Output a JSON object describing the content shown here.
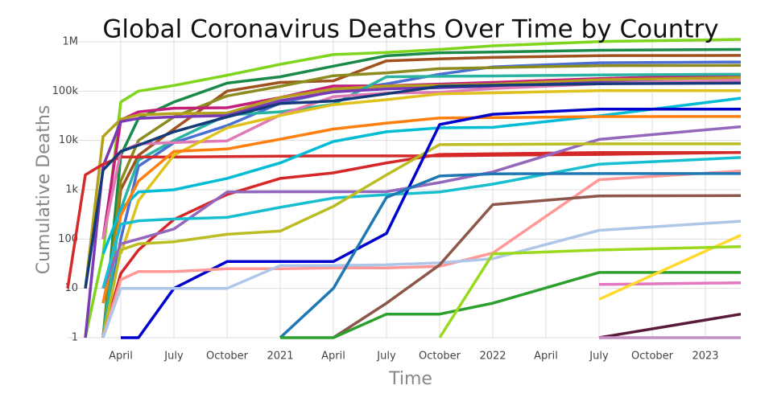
{
  "chart_data": {
    "type": "line",
    "title": "Global Coronavirus Deaths Over Time by Country",
    "x_label": "Time",
    "y_label": "Cumulative Deaths",
    "log_y": true,
    "grid": true,
    "x": [
      "2020-01",
      "2020-02",
      "2020-03",
      "2020-04",
      "2020-05",
      "2020-07",
      "2020-10",
      "2021-01",
      "2021-04",
      "2021-07",
      "2021-10",
      "2022-01",
      "2022-07",
      "2023-03"
    ],
    "xlim": [
      "2020-01",
      "2023-03"
    ],
    "xticks": [
      {
        "value": "2020-04",
        "label": "April"
      },
      {
        "value": "2020-07",
        "label": "July"
      },
      {
        "value": "2020-10",
        "label": "October"
      },
      {
        "value": "2021-01",
        "label": "2021"
      },
      {
        "value": "2021-04",
        "label": "April"
      },
      {
        "value": "2021-07",
        "label": "July"
      },
      {
        "value": "2021-10",
        "label": "October"
      },
      {
        "value": "2022-01",
        "label": "2022"
      },
      {
        "value": "2022-04",
        "label": "April"
      },
      {
        "value": "2022-07",
        "label": "July"
      },
      {
        "value": "2022-10",
        "label": "October"
      },
      {
        "value": "2023-01",
        "label": "2023"
      }
    ],
    "ylim": [
      1,
      1300000
    ],
    "yticks": [
      1,
      10,
      100,
      {
        "value": 1000,
        "label": "1k"
      },
      {
        "value": 10000,
        "label": "10k"
      },
      {
        "value": 100000,
        "label": "100k"
      },
      {
        "value": 1000000,
        "label": "1M"
      }
    ],
    "series": [
      {
        "color": "#7fd41c",
        "values": [
          null,
          1,
          50,
          60000,
          100000,
          130000,
          210000,
          350000,
          550000,
          610000,
          700000,
          830000,
          1010000,
          1120000
        ]
      },
      {
        "color": "#1a8a4a",
        "values": [
          null,
          null,
          1,
          5000,
          28000,
          60000,
          145000,
          195000,
          320000,
          520000,
          600000,
          620000,
          675000,
          700000
        ]
      },
      {
        "color": "#a0521e",
        "values": [
          null,
          null,
          1,
          1000,
          5000,
          17000,
          100000,
          150000,
          162000,
          410000,
          450000,
          482000,
          525000,
          530000
        ]
      },
      {
        "color": "#4a6fd4",
        "values": [
          null,
          null,
          1,
          100,
          3000,
          9000,
          20000,
          57000,
          100000,
          140000,
          220000,
          310000,
          375000,
          390000
        ]
      },
      {
        "color": "#8b8b1e",
        "values": [
          null,
          null,
          1,
          1500,
          10000,
          30000,
          80000,
          125000,
          205000,
          235000,
          285000,
          300000,
          328000,
          333000
        ]
      },
      {
        "color": "#c41e7a",
        "values": [
          null,
          null,
          100,
          26000,
          38000,
          45000,
          46000,
          74000,
          127000,
          128000,
          139000,
          150000,
          180000,
          210000
        ]
      },
      {
        "color": "#b5a01a",
        "values": [
          null,
          10,
          12000,
          27000,
          33000,
          35000,
          36000,
          74000,
          110000,
          127000,
          131000,
          137000,
          170000,
          188000
        ]
      },
      {
        "color": "#2ab3a0",
        "values": [
          null,
          null,
          1,
          400,
          4000,
          10000,
          33000,
          38000,
          54000,
          195000,
          200000,
          203000,
          213000,
          219000
        ]
      },
      {
        "color": "#7a3ab5",
        "values": [
          null,
          1,
          3000,
          24000,
          28000,
          30000,
          32000,
          64000,
          96000,
          111000,
          117000,
          126000,
          150000,
          160000
        ]
      },
      {
        "color": "#d42a2a",
        "values": [
          10,
          2000,
          3300,
          4600,
          4630,
          4630,
          4700,
          4800,
          4850,
          4850,
          4850,
          5000,
          5200,
          5700
        ]
      },
      {
        "color": "#e07ab5",
        "values": [
          null,
          null,
          100,
          6000,
          8500,
          9100,
          9800,
          33000,
          77000,
          91000,
          95000,
          113000,
          141000,
          167000
        ]
      },
      {
        "color": "#143a7a",
        "values": [
          null,
          10,
          2500,
          6000,
          8000,
          15000,
          30000,
          56000,
          63000,
          88000,
          125000,
          131000,
          141000,
          145000
        ]
      },
      {
        "color": "#e0c21e",
        "values": [
          null,
          null,
          null,
          50,
          600,
          5000,
          18000,
          32000,
          53000,
          67000,
          88000,
          92000,
          102000,
          102000
        ]
      },
      {
        "color": "#00bcd4",
        "values": [
          null,
          null,
          50,
          400,
          900,
          1000,
          1700,
          3500,
          9500,
          15000,
          18000,
          18400,
          31500,
          72000
        ]
      },
      {
        "color": "#ff7f0e",
        "values": [
          null,
          null,
          5,
          300,
          1500,
          6000,
          6700,
          10600,
          17000,
          22500,
          28500,
          29000,
          30400,
          30600
        ]
      },
      {
        "color": "#d62728",
        "values": [
          null,
          null,
          1,
          20,
          60,
          250,
          800,
          1700,
          2200,
          3500,
          5200,
          5350,
          5670,
          5690
        ]
      },
      {
        "color": "#9467bd",
        "values": [
          null,
          null,
          10,
          80,
          100,
          160,
          900,
          909,
          910,
          915,
          1400,
          2300,
          10500,
          19000
        ]
      },
      {
        "color": "#17becf",
        "values": [
          null,
          null,
          10,
          200,
          235,
          255,
          275,
          440,
          680,
          795,
          900,
          1300,
          3300,
          4500
        ]
      },
      {
        "color": "#bcbd22",
        "values": [
          null,
          null,
          1,
          60,
          80,
          88,
          125,
          145,
          460,
          2000,
          8200,
          8320,
          8530,
          8530
        ]
      },
      {
        "color": "#0000cc",
        "values": [
          null,
          null,
          null,
          1,
          1,
          10,
          35,
          35,
          35,
          130,
          21000,
          34000,
          43000,
          43000
        ]
      },
      {
        "color": "#ff9896",
        "values": [
          null,
          null,
          1,
          15,
          22,
          22,
          25,
          25,
          26,
          26,
          28,
          52,
          1600,
          2400
        ]
      },
      {
        "color": "#aec7e8",
        "values": [
          null,
          null,
          1,
          10,
          10,
          10,
          10,
          29,
          29,
          30,
          33,
          40,
          150,
          230
        ]
      },
      {
        "color": "#1f77b4",
        "values": [
          null,
          null,
          null,
          null,
          null,
          null,
          null,
          1,
          10,
          700,
          1900,
          2100,
          2130,
          2130
        ]
      },
      {
        "color": "#8c564b",
        "values": [
          null,
          null,
          null,
          null,
          null,
          null,
          null,
          null,
          1,
          5,
          30,
          500,
          750,
          760
        ]
      },
      {
        "color": "#2ca02c",
        "values": [
          null,
          null,
          null,
          null,
          null,
          null,
          null,
          1,
          1,
          3,
          3,
          5,
          21,
          21
        ]
      },
      {
        "color": "#e377c2",
        "values": [
          null,
          null,
          null,
          null,
          null,
          null,
          null,
          null,
          null,
          null,
          null,
          null,
          12,
          13
        ]
      },
      {
        "color": "#5a1a3a",
        "values": [
          null,
          null,
          null,
          null,
          null,
          null,
          null,
          null,
          null,
          null,
          null,
          null,
          1,
          3
        ]
      },
      {
        "color": "#ffd92e",
        "values": [
          null,
          null,
          null,
          null,
          null,
          null,
          null,
          null,
          null,
          null,
          null,
          null,
          6,
          120
        ]
      },
      {
        "color": "#9ad91e",
        "values": [
          null,
          null,
          null,
          null,
          null,
          null,
          null,
          null,
          null,
          null,
          1,
          50,
          60,
          70
        ]
      },
      {
        "color": "#c490c4",
        "values": [
          null,
          null,
          null,
          null,
          null,
          null,
          null,
          null,
          null,
          null,
          null,
          null,
          1,
          1
        ]
      }
    ]
  }
}
